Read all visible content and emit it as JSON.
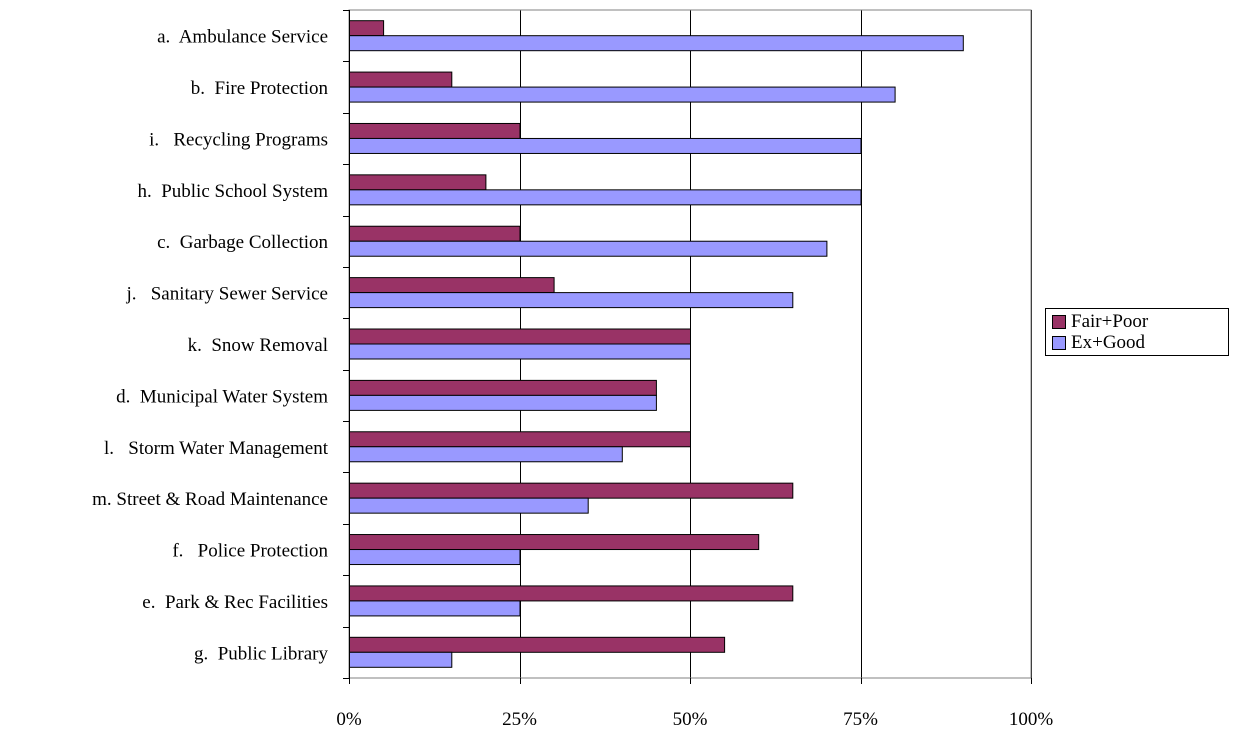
{
  "chart_data": {
    "type": "bar",
    "orientation": "horizontal",
    "categories": [
      "a.  Ambulance Service",
      "b.  Fire Protection",
      "i.   Recycling Programs",
      "h.  Public School System",
      "c.  Garbage Collection",
      "j.   Sanitary Sewer Service",
      "k.  Snow Removal",
      "d.  Municipal Water System",
      "l.   Storm Water Management",
      "m. Street & Road Maintenance",
      "f.   Police Protection",
      "e.  Park & Rec Facilities",
      "g.  Public Library"
    ],
    "series": [
      {
        "name": "Fair+Poor",
        "color": "#993366",
        "values": [
          5,
          15,
          25,
          20,
          25,
          30,
          50,
          45,
          50,
          65,
          60,
          65,
          55
        ]
      },
      {
        "name": "Ex+Good",
        "color": "#9999ff",
        "values": [
          90,
          80,
          75,
          75,
          70,
          65,
          50,
          45,
          40,
          35,
          25,
          25,
          15
        ]
      }
    ],
    "xlim": [
      0,
      100
    ],
    "xticks": [
      0,
      25,
      50,
      75,
      100
    ],
    "xtick_labels": [
      "0%",
      "25%",
      "50%",
      "75%",
      "100%"
    ],
    "title": "",
    "xlabel": "",
    "ylabel": "",
    "grid": "vertical",
    "legend_position": "right"
  },
  "legend": {
    "items": [
      {
        "label": "Fair+Poor",
        "color": "#993366"
      },
      {
        "label": "Ex+Good",
        "color": "#9999ff"
      }
    ]
  }
}
